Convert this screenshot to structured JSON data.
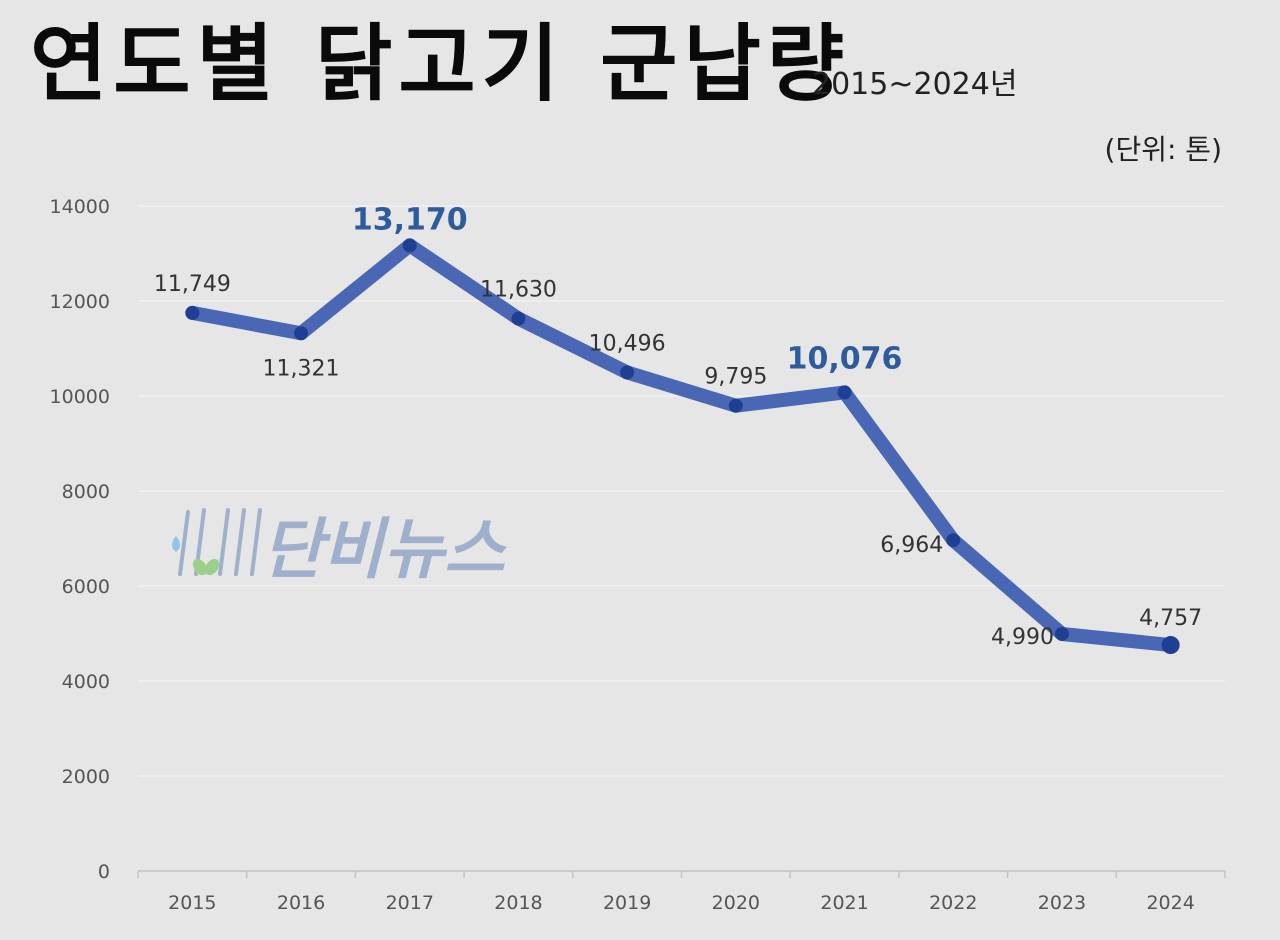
{
  "header": {
    "title": "연도별 닭고기 군납량",
    "subtitle": "2015~2024년",
    "unit": "(단위: 톤)"
  },
  "watermark": {
    "text": "단비뉴스"
  },
  "colors": {
    "background": "#e6e6e6",
    "line": "#4a67b5",
    "marker": "#1f3f95",
    "highlight_label": "#2e5a9e",
    "label": "#333333",
    "axis_text": "#555555",
    "grid": "#f2f2f2",
    "watermark": "#9fb0cc"
  },
  "chart_data": {
    "type": "line",
    "title": "연도별 닭고기 군납량",
    "subtitle": "2015~2024년",
    "unit": "(단위: 톤)",
    "categories": [
      "2015",
      "2016",
      "2017",
      "2018",
      "2019",
      "2020",
      "2021",
      "2022",
      "2023",
      "2024"
    ],
    "series": [
      {
        "values": [
          11749,
          11321,
          13170,
          11630,
          10496,
          9795,
          10076,
          6964,
          4990,
          4757
        ],
        "labels": [
          "11,749",
          "11,321",
          "13,170",
          "11,630",
          "10,496",
          "9,795",
          "10,076",
          "6,964",
          "4,990",
          "4,757"
        ]
      }
    ],
    "highlighted": [
      "2017",
      "2021"
    ],
    "ylim": [
      0,
      14000
    ],
    "yticks": [
      "0",
      "2000",
      "4000",
      "6000",
      "8000",
      "10000",
      "12000",
      "14000"
    ],
    "grid": true,
    "legend": "none"
  }
}
